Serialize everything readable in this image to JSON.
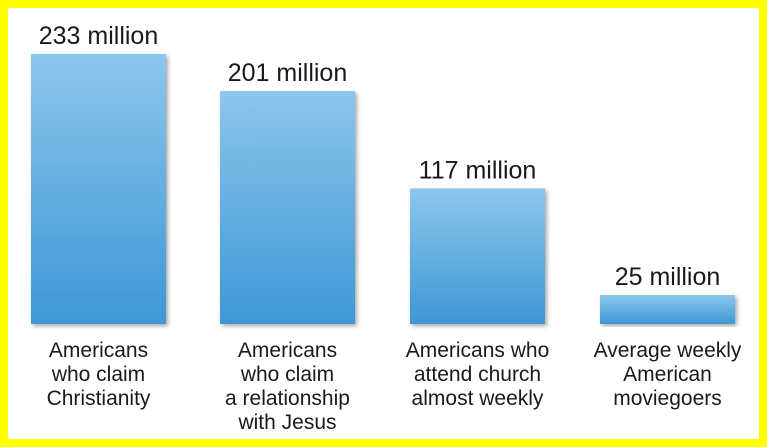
{
  "chart_data": {
    "type": "bar",
    "title": "",
    "xlabel": "",
    "ylabel": "",
    "ylim": [
      0,
      233
    ],
    "grid": false,
    "legend": "none",
    "bar_color_top": "#8cc6ec",
    "bar_color_bottom": "#3e97d6",
    "frame_color": "#ffff00",
    "categories": [
      [
        "Americans",
        "who claim",
        "Christianity"
      ],
      [
        "Americans",
        "who claim",
        "a relationship",
        "with Jesus"
      ],
      [
        "Americans who",
        "attend church",
        "almost weekly"
      ],
      [
        "Average weekly",
        "American",
        "moviegoers"
      ]
    ],
    "values": [
      233,
      201,
      117,
      25
    ],
    "value_labels": [
      "233 million",
      "201 million",
      "117 million",
      "25 million"
    ]
  }
}
